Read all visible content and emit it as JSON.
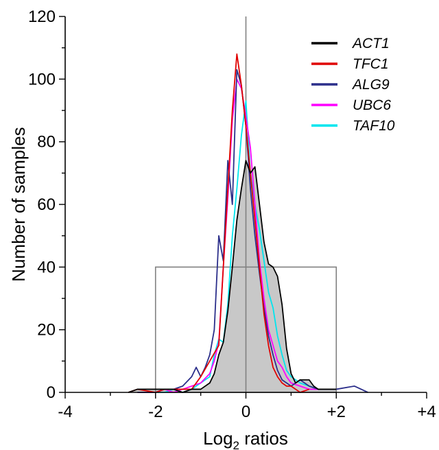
{
  "chart_data": {
    "type": "line",
    "title": "",
    "xlabel": "Log",
    "xlabel_subscript": "2",
    "xlabel_suffix": " ratios",
    "ylabel": "Number of samples",
    "xlim": [
      -4,
      4
    ],
    "ylim": [
      0,
      120
    ],
    "xticks": [
      -4,
      -2,
      0,
      2,
      4
    ],
    "xtick_labels": [
      "-4",
      "-2",
      "0",
      "+2",
      "+4"
    ],
    "yticks": [
      0,
      20,
      40,
      60,
      80,
      100,
      120
    ],
    "ytick_labels": [
      "0",
      "20",
      "40",
      "60",
      "80",
      "100",
      "120"
    ],
    "grid": false,
    "legend_position": "top-right",
    "reference_lines": {
      "vertical_at_x": 0
    },
    "reference_box": {
      "x": [
        -2,
        2
      ],
      "y": [
        0,
        40
      ]
    },
    "series": [
      {
        "name": "ACT1",
        "color": "#000000",
        "fill": "#c8c8c8",
        "x": [
          -2.6,
          -2.4,
          -2.0,
          -1.8,
          -1.6,
          -1.4,
          -1.2,
          -1.0,
          -0.8,
          -0.7,
          -0.6,
          -0.5,
          -0.4,
          -0.3,
          -0.2,
          -0.1,
          0.0,
          0.1,
          0.2,
          0.3,
          0.4,
          0.5,
          0.6,
          0.7,
          0.8,
          0.9,
          1.0,
          1.1,
          1.2,
          1.4,
          1.5,
          1.6,
          1.8,
          2.0
        ],
        "y": [
          0,
          1,
          1,
          1,
          1,
          0,
          1,
          1,
          3,
          6,
          12,
          16,
          26,
          40,
          55,
          65,
          74,
          70,
          72,
          60,
          48,
          41,
          40,
          37,
          28,
          14,
          6,
          3,
          4,
          4,
          2,
          1,
          1,
          1
        ]
      },
      {
        "name": "TFC1",
        "color": "#e00000",
        "x": [
          -2.6,
          -2.4,
          -2.0,
          -1.8,
          -1.6,
          -1.4,
          -1.2,
          -1.0,
          -0.8,
          -0.6,
          -0.5,
          -0.4,
          -0.3,
          -0.2,
          -0.1,
          0.0,
          0.1,
          0.2,
          0.3,
          0.4,
          0.5,
          0.6,
          0.7,
          0.8,
          0.9,
          1.0,
          1.1,
          1.2,
          1.4
        ],
        "y": [
          0,
          1,
          0,
          1,
          1,
          1,
          1,
          5,
          10,
          15,
          40,
          65,
          90,
          108,
          98,
          85,
          70,
          55,
          40,
          25,
          15,
          8,
          5,
          3,
          2,
          2,
          1,
          0,
          1
        ]
      },
      {
        "name": "ALG9",
        "color": "#2b2e8a",
        "x": [
          -2.4,
          -2.0,
          -1.8,
          -1.6,
          -1.4,
          -1.2,
          -1.1,
          -1.0,
          -0.9,
          -0.8,
          -0.7,
          -0.6,
          -0.5,
          -0.4,
          -0.3,
          -0.2,
          -0.1,
          0.0,
          0.1,
          0.2,
          0.3,
          0.4,
          0.5,
          0.6,
          0.7,
          0.8,
          0.9,
          1.0,
          1.2,
          1.4,
          1.6,
          1.8,
          2.0,
          2.4,
          2.7
        ],
        "y": [
          0,
          0,
          1,
          1,
          2,
          5,
          8,
          5,
          8,
          12,
          20,
          50,
          42,
          74,
          60,
          103,
          98,
          85,
          65,
          50,
          38,
          27,
          18,
          12,
          7,
          4,
          3,
          2,
          4,
          2,
          1,
          1,
          1,
          2,
          0
        ]
      },
      {
        "name": "UBC6",
        "color": "#ff00ff",
        "x": [
          -2.4,
          -2.0,
          -1.8,
          -1.6,
          -1.4,
          -1.2,
          -1.0,
          -0.8,
          -0.7,
          -0.6,
          -0.5,
          -0.4,
          -0.3,
          -0.2,
          -0.1,
          0.0,
          0.1,
          0.2,
          0.3,
          0.4,
          0.5,
          0.6,
          0.7,
          0.8,
          0.9,
          1.0,
          1.2,
          1.4,
          1.6
        ],
        "y": [
          0,
          0,
          1,
          0,
          1,
          2,
          3,
          6,
          10,
          16,
          40,
          62,
          87,
          100,
          97,
          88,
          78,
          60,
          42,
          30,
          20,
          15,
          10,
          8,
          5,
          3,
          2,
          1,
          1
        ]
      },
      {
        "name": "TAF10",
        "color": "#00e5ee",
        "x": [
          -2.0,
          -1.8,
          -1.6,
          -1.4,
          -1.2,
          -1.0,
          -0.8,
          -0.7,
          -0.6,
          -0.5,
          -0.4,
          -0.3,
          -0.2,
          -0.1,
          0.0,
          0.1,
          0.2,
          0.3,
          0.4,
          0.5,
          0.6,
          0.7,
          0.8,
          0.9,
          1.0,
          1.2,
          1.4,
          1.6
        ],
        "y": [
          0,
          0,
          1,
          0,
          1,
          3,
          5,
          12,
          17,
          16,
          28,
          50,
          65,
          82,
          93,
          70,
          60,
          52,
          42,
          32,
          27,
          18,
          12,
          7,
          5,
          3,
          2,
          1
        ]
      }
    ]
  }
}
